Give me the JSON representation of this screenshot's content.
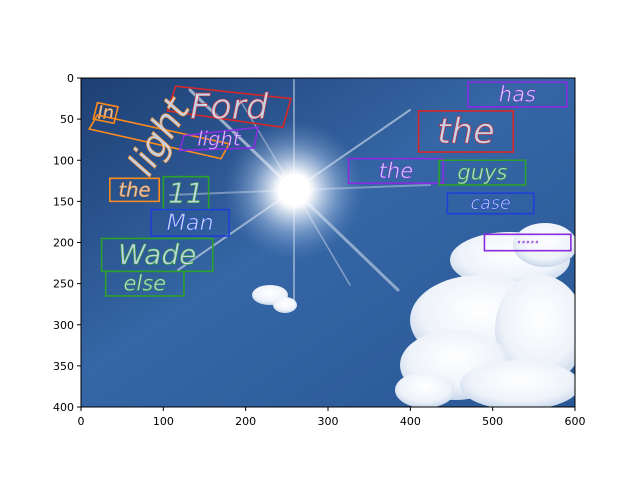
{
  "figure": {
    "xlim": [
      0,
      600
    ],
    "ylim": [
      400,
      0
    ],
    "x_ticks": [
      "0",
      "100",
      "200",
      "300",
      "400",
      "500",
      "600"
    ],
    "y_ticks": [
      "0",
      "50",
      "100",
      "150",
      "200",
      "250",
      "300",
      "350",
      "400"
    ]
  },
  "photo": {
    "subject": "sunny blue sky with lens flare and white clouds",
    "sky_color": "#2f5e9c",
    "sky_dark_color": "#1e3f74",
    "cloud_color": "#ffffff",
    "sun_color": "#ffffff"
  },
  "box_colors": {
    "orange": "#ff8c1a",
    "red": "#d62728",
    "purple": "#8a2be2",
    "green": "#2ca02c",
    "blue": "#1f3fd6"
  },
  "words": [
    {
      "text": "In",
      "box": "orange",
      "quad": [
        [
          15,
          50
        ],
        [
          20,
          30
        ],
        [
          45,
          35
        ],
        [
          40,
          55
        ]
      ]
    },
    {
      "text": "Ford",
      "box": "red",
      "quad": [
        [
          105,
          40
        ],
        [
          115,
          10
        ],
        [
          255,
          25
        ],
        [
          245,
          60
        ]
      ]
    },
    {
      "text": "has",
      "box": "purple",
      "quad": [
        [
          470,
          5
        ],
        [
          590,
          5
        ],
        [
          590,
          35
        ],
        [
          470,
          35
        ]
      ]
    },
    {
      "text": "the",
      "box": "red",
      "quad": [
        [
          410,
          40
        ],
        [
          525,
          40
        ],
        [
          525,
          90
        ],
        [
          410,
          90
        ]
      ]
    },
    {
      "text": "light",
      "box": "orange",
      "quad": [
        [
          10,
          62
        ],
        [
          20,
          45
        ],
        [
          180,
          80
        ],
        [
          170,
          98
        ]
      ]
    },
    {
      "text": "light",
      "box": "purple",
      "quad": [
        [
          120,
          88
        ],
        [
          125,
          70
        ],
        [
          215,
          60
        ],
        [
          210,
          85
        ]
      ]
    },
    {
      "text": "the",
      "box": "purple",
      "quad": [
        [
          325,
          98
        ],
        [
          440,
          98
        ],
        [
          440,
          128
        ],
        [
          325,
          128
        ]
      ]
    },
    {
      "text": "guys",
      "box": "green",
      "quad": [
        [
          435,
          100
        ],
        [
          540,
          100
        ],
        [
          540,
          130
        ],
        [
          435,
          130
        ]
      ]
    },
    {
      "text": "case",
      "box": "blue",
      "quad": [
        [
          445,
          140
        ],
        [
          550,
          140
        ],
        [
          550,
          165
        ],
        [
          445,
          165
        ]
      ]
    },
    {
      "text": "the",
      "box": "orange",
      "quad": [
        [
          35,
          122
        ],
        [
          95,
          122
        ],
        [
          95,
          150
        ],
        [
          35,
          150
        ]
      ]
    },
    {
      "text": "11",
      "box": "green",
      "quad": [
        [
          100,
          120
        ],
        [
          155,
          120
        ],
        [
          155,
          160
        ],
        [
          100,
          160
        ]
      ]
    },
    {
      "text": "Man",
      "box": "blue",
      "quad": [
        [
          85,
          160
        ],
        [
          180,
          160
        ],
        [
          180,
          192
        ],
        [
          85,
          192
        ]
      ]
    },
    {
      "text": "Wade",
      "box": "green",
      "quad": [
        [
          25,
          195
        ],
        [
          160,
          195
        ],
        [
          160,
          235
        ],
        [
          25,
          235
        ]
      ]
    },
    {
      "text": "else",
      "box": "green",
      "quad": [
        [
          30,
          235
        ],
        [
          125,
          235
        ],
        [
          125,
          265
        ],
        [
          30,
          265
        ]
      ]
    },
    {
      "text": "·····",
      "box": "purple",
      "quad": [
        [
          490,
          190
        ],
        [
          595,
          190
        ],
        [
          595,
          210
        ],
        [
          490,
          210
        ]
      ]
    }
  ]
}
